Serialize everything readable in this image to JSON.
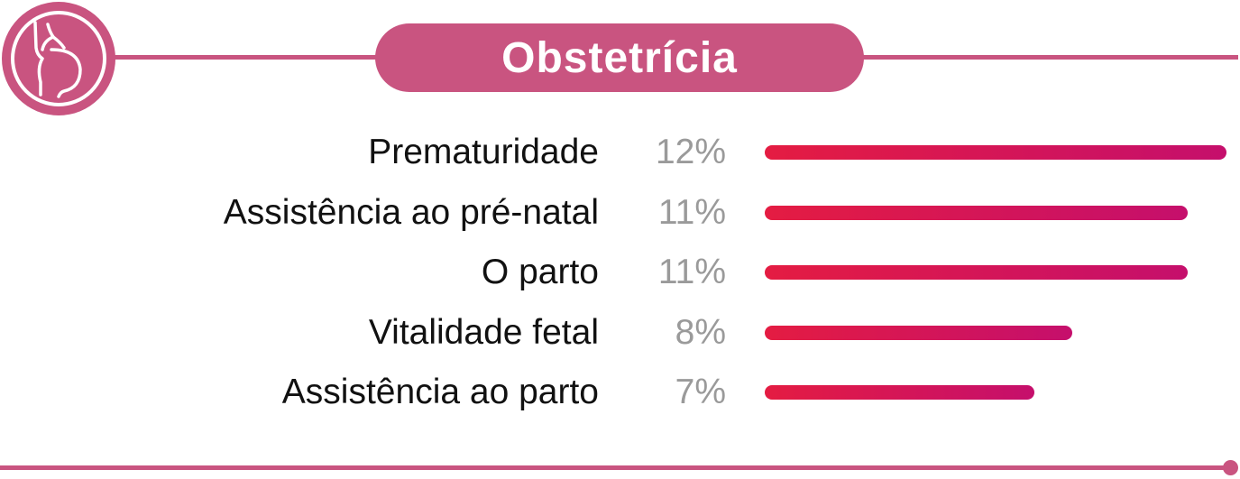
{
  "header": {
    "title": "Obstetrícia",
    "icon": "pregnant-woman-icon",
    "accent_color": "#c95480"
  },
  "chart_data": {
    "type": "bar",
    "orientation": "horizontal",
    "categories": [
      "Prematuridade",
      "Assistência ao pré-natal",
      "O parto",
      "Vitalidade fetal",
      "Assistência ao parto"
    ],
    "values": [
      12,
      11,
      11,
      8,
      7
    ],
    "value_labels": [
      "12%",
      "11%",
      "11%",
      "8%",
      "7%"
    ],
    "unit": "%",
    "title": "Obstetrícia",
    "bar_gradient": [
      "#e41c42",
      "#c50f6c"
    ],
    "label_color": "#111111",
    "value_color": "#9a9a9a",
    "grid": false,
    "legend": "none"
  }
}
